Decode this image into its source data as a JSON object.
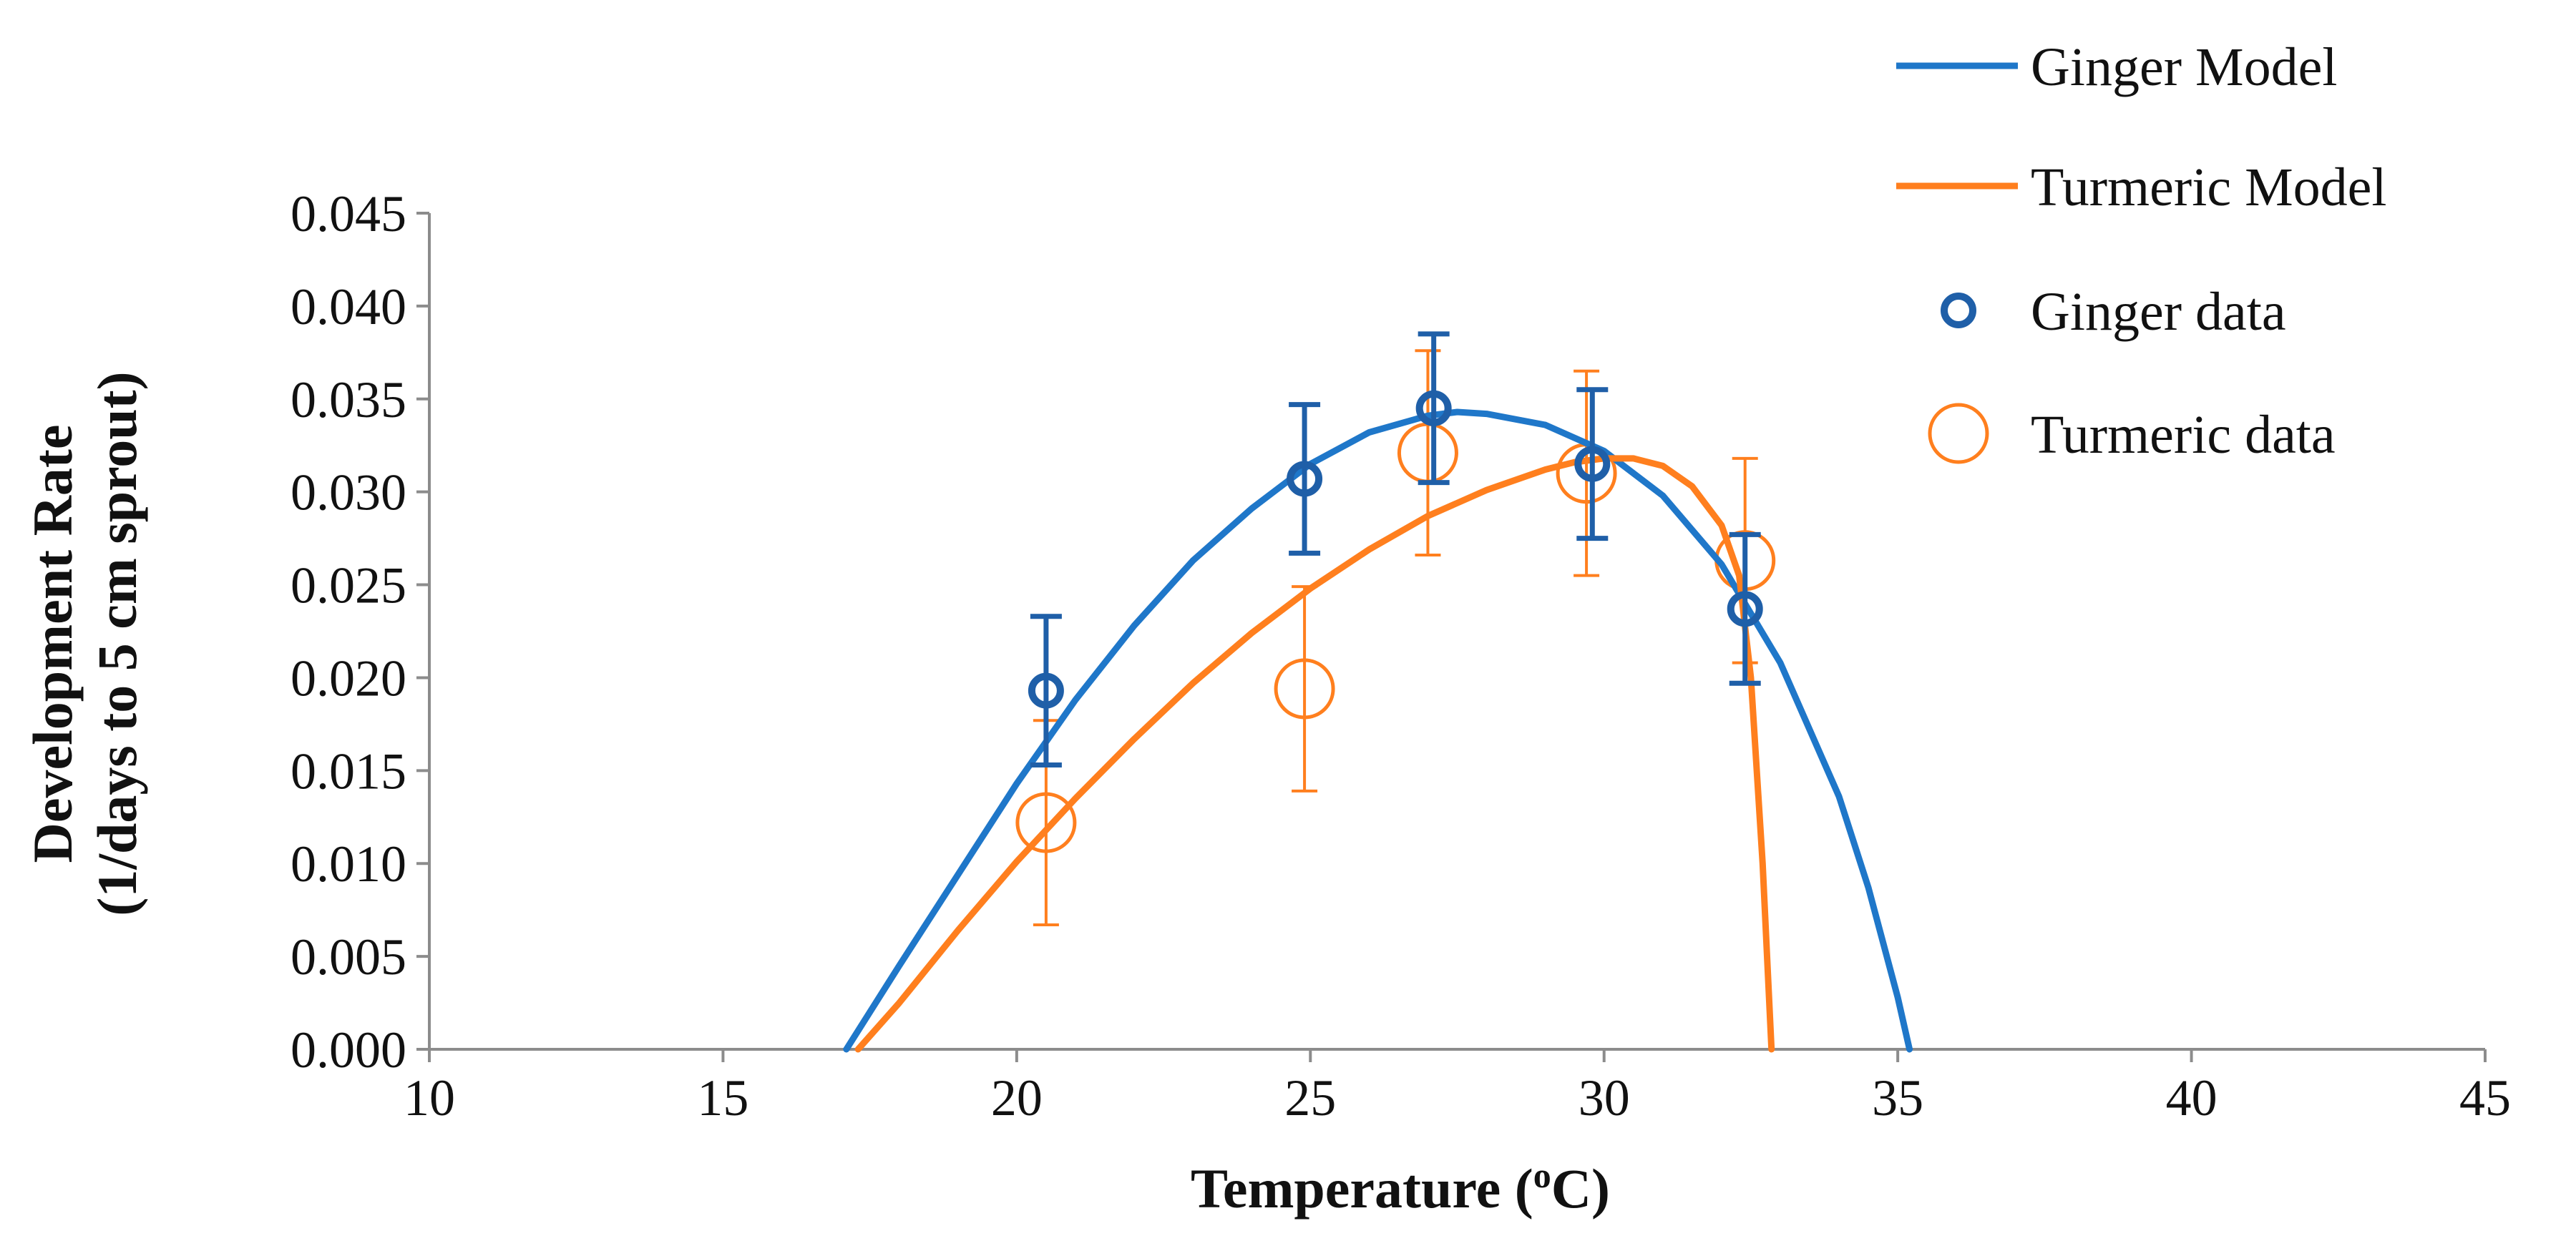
{
  "chart_data": {
    "type": "scatter",
    "title": "",
    "xlabel": "Temperature (",
    "xlabel_sup": "o",
    "xlabel_tail": "C)",
    "ylabel_line1": "Development Rate",
    "ylabel_line2": "(1/days to 5 cm sprout)",
    "xlim": [
      10,
      45
    ],
    "ylim": [
      0,
      0.045
    ],
    "x_ticks": [
      10,
      15,
      20,
      25,
      30,
      35,
      40,
      45
    ],
    "x_tick_labels": [
      "10",
      "15",
      "20",
      "25",
      "30",
      "35",
      "40",
      "45"
    ],
    "y_ticks": [
      0,
      0.005,
      0.01,
      0.015,
      0.02,
      0.025,
      0.03,
      0.035,
      0.04,
      0.045
    ],
    "y_tick_labels": [
      "0.000",
      "0.005",
      "0.010",
      "0.015",
      "0.020",
      "0.025",
      "0.030",
      "0.035",
      "0.040",
      "0.045"
    ],
    "grid": false,
    "legend_position": "top-right",
    "series": [
      {
        "name": "Ginger Model",
        "kind": "line",
        "color": "#1f77c9",
        "x": [
          17.1,
          18,
          19,
          20,
          21,
          22,
          23,
          24,
          25,
          26,
          27,
          27.5,
          28,
          29,
          30,
          31,
          32,
          33,
          34,
          34.5,
          35,
          35.2
        ],
        "y": [
          0.0,
          0.0045,
          0.0094,
          0.0143,
          0.0188,
          0.0228,
          0.0263,
          0.0291,
          0.0315,
          0.0332,
          0.0341,
          0.0343,
          0.0342,
          0.0336,
          0.0322,
          0.0298,
          0.0261,
          0.0208,
          0.0136,
          0.0087,
          0.0028,
          0.0
        ]
      },
      {
        "name": "Turmeric Model",
        "kind": "line",
        "color": "#ff7f1e",
        "x": [
          17.3,
          18,
          19,
          20,
          21,
          22,
          23,
          24,
          25,
          26,
          27,
          28,
          29,
          29.5,
          30,
          30.5,
          31,
          31.5,
          32,
          32.3,
          32.5,
          32.7,
          32.85
        ],
        "y": [
          0.0,
          0.0025,
          0.0064,
          0.0101,
          0.0135,
          0.0167,
          0.0197,
          0.0224,
          0.0248,
          0.0269,
          0.0287,
          0.0301,
          0.0312,
          0.0316,
          0.0318,
          0.0318,
          0.0314,
          0.0303,
          0.0282,
          0.0255,
          0.02,
          0.01,
          0.0
        ]
      },
      {
        "name": "Ginger data",
        "kind": "points",
        "color": "#1f5fa8",
        "x": [
          20.5,
          24.9,
          27.1,
          29.8,
          32.4
        ],
        "y": [
          0.0193,
          0.0307,
          0.0345,
          0.0315,
          0.0237
        ],
        "err": [
          0.004,
          0.004,
          0.004,
          0.004,
          0.004
        ]
      },
      {
        "name": "Turmeric data",
        "kind": "points",
        "color": "#ff7f1e",
        "x": [
          20.5,
          24.9,
          27.0,
          29.7,
          32.4
        ],
        "y": [
          0.0122,
          0.0194,
          0.0321,
          0.031,
          0.0263
        ],
        "err": [
          0.0055,
          0.0055,
          0.0055,
          0.0055,
          0.0055
        ]
      }
    ]
  }
}
